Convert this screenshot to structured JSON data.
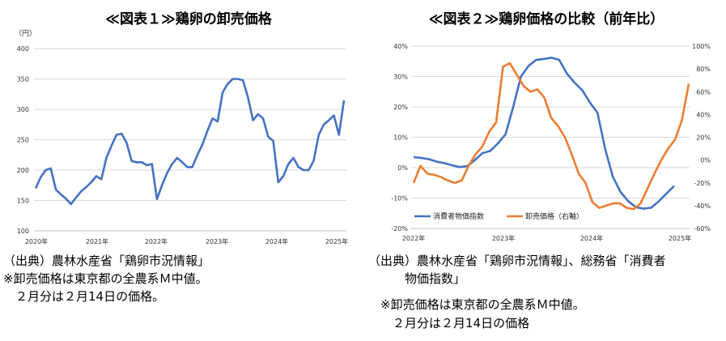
{
  "chart_data": [
    {
      "type": "line",
      "title": "≪図表１≫鶏卵の卸売価格",
      "ylabel": "（円）",
      "ylim": [
        100,
        400
      ],
      "yticks": [
        "100",
        "150",
        "200",
        "250",
        "300",
        "350",
        "400"
      ],
      "xtick_labels": [
        "2020年",
        "2021年",
        "2022年",
        "2023年",
        "2024年",
        "2025年"
      ],
      "grid": true,
      "series": [
        {
          "color": "#4472C4",
          "values": [
            170,
            188,
            200,
            203,
            168,
            160,
            153,
            144,
            155,
            165,
            172,
            180,
            190,
            185,
            220,
            240,
            258,
            260,
            245,
            215,
            213,
            213,
            208,
            210,
            152,
            175,
            195,
            210,
            220,
            213,
            205,
            205,
            225,
            242,
            265,
            285,
            280,
            328,
            342,
            350,
            350,
            348,
            320,
            282,
            292,
            285,
            255,
            248,
            180,
            190,
            210,
            220,
            205,
            200,
            200,
            215,
            258,
            275,
            282,
            290,
            258,
            315
          ]
        }
      ],
      "notes": [
        "（出典）農林水産省「鶏卵市況情報」",
        "※卸売価格は東京都の全農系Ｍ中値。",
        "　２月分は２月14日の価格。"
      ]
    },
    {
      "type": "line",
      "title": "≪図表２≫鶏卵価格の比較（前年比）",
      "yleft_ticks": [
        "-20%",
        "-10%",
        "0%",
        "10%",
        "20%",
        "30%",
        "40%"
      ],
      "yright_ticks": [
        "-60%",
        "-40%",
        "-20%",
        "0%",
        "20%",
        "40%",
        "60%",
        "80%",
        "100%"
      ],
      "xtick_labels": [
        "2022年",
        "2023年",
        "2024年",
        "2025年"
      ],
      "grid": true,
      "legend_position": "bottom-left",
      "series": [
        {
          "name": "消費者物価指数",
          "axis": "left",
          "color": "#4472C4",
          "values": [
            3.5,
            3.2,
            2.8,
            2.0,
            1.5,
            0.8,
            0.2,
            0.5,
            2.5,
            4.8,
            5.5,
            8.0,
            11.0,
            20.0,
            30.0,
            33.5,
            35.5,
            35.8,
            36.2,
            35.5,
            31.0,
            28.0,
            25.5,
            21.5,
            18.0,
            6.0,
            -3.0,
            -8.0,
            -11.0,
            -13.0,
            -13.5,
            -13.2,
            -11.0,
            -8.5,
            -6.0
          ]
        },
        {
          "name": "卸売価格（右軸）",
          "axis": "right",
          "color": "#ED7D31",
          "values": [
            -20,
            -5,
            -12,
            -13,
            -15,
            -18,
            -20,
            -18,
            -5,
            5,
            12,
            25,
            33,
            82,
            85,
            75,
            65,
            60,
            62,
            55,
            37,
            30,
            20,
            5,
            -12,
            -20,
            -37,
            -42,
            -40,
            -38,
            -38,
            -42,
            -43,
            -38,
            -25,
            -12,
            0,
            10,
            18,
            35,
            67
          ]
        }
      ],
      "notes": [
        "（出典）農林水産省「鶏卵市況情報」、総務省「消費者",
        "　　　物価指数」",
        "　※卸売価格は東京都の全農系Ｍ中値。",
        "　　２月分は２月14日の価格"
      ]
    }
  ]
}
